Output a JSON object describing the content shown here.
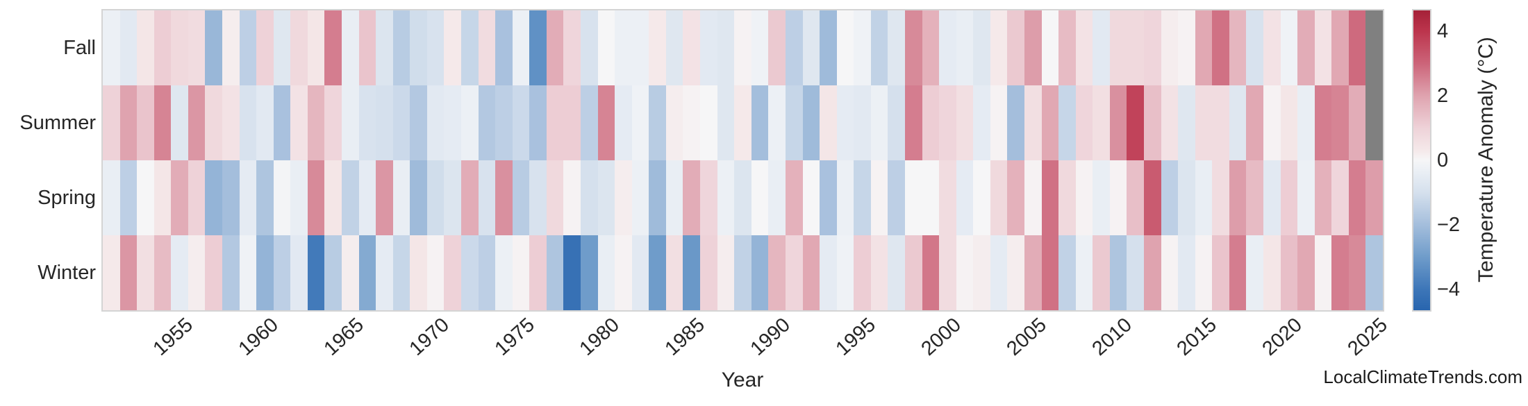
{
  "watermark": "LocalClimateTrends.com",
  "chart_data": {
    "type": "heatmap",
    "xlabel": "Year",
    "x_axis": {
      "year_start": 1951,
      "year_end": 2025,
      "ticks": [
        1955,
        1960,
        1965,
        1970,
        1975,
        1980,
        1985,
        1990,
        1995,
        2000,
        2005,
        2010,
        2015,
        2020,
        2025
      ]
    },
    "colorbar": {
      "label": "Temperature Anomaly (°C)",
      "ticks": [
        4,
        2,
        0,
        -2,
        -4
      ],
      "vmin": -4.65,
      "vmax": 4.65
    },
    "missing_color": "#808080",
    "accent_negative": "#2865ae",
    "accent_positive": "#a52138",
    "colormap_anchors": [
      [
        -4.65,
        "#2865ae"
      ],
      [
        -4.0,
        "#3d76b8"
      ],
      [
        -3.0,
        "#6f9cca"
      ],
      [
        -2.0,
        "#a4bedc"
      ],
      [
        -1.0,
        "#d5e0ed"
      ],
      [
        -0.3,
        "#ecf0f5"
      ],
      [
        0.0,
        "#f6f6f7"
      ],
      [
        0.3,
        "#f5e9ea"
      ],
      [
        1.0,
        "#eed2d8"
      ],
      [
        2.0,
        "#dfa3af"
      ],
      [
        3.0,
        "#cc6479"
      ],
      [
        4.0,
        "#bc354d"
      ],
      [
        4.65,
        "#a52138"
      ]
    ],
    "rows": [
      {
        "name": "Fall",
        "values": [
          -0.3,
          -0.6,
          0.4,
          1.1,
          0.8,
          0.7,
          -2.2,
          0.2,
          -1.5,
          1.0,
          -0.7,
          0.8,
          0.4,
          2.6,
          -0.4,
          1.3,
          -0.8,
          -1.6,
          -1.1,
          -0.9,
          0.3,
          -1.3,
          0.7,
          -1.9,
          -0.3,
          -3.3,
          1.8,
          0.9,
          -0.9,
          0.0,
          -0.3,
          -0.3,
          0.3,
          -0.7,
          0.5,
          -0.6,
          -0.7,
          0.1,
          -0.2,
          1.2,
          -1.5,
          -0.7,
          -2.1,
          0.0,
          -0.2,
          -1.4,
          -0.7,
          2.4,
          1.7,
          -0.5,
          -0.4,
          -0.7,
          0.3,
          1.2,
          2.1,
          0.0,
          1.5,
          0.5,
          -0.6,
          0.8,
          0.8,
          0.9,
          0.2,
          0.1,
          1.9,
          2.8,
          1.6,
          -0.9,
          0.5,
          -0.2,
          1.8,
          0.5,
          1.9,
          2.9,
          null
        ]
      },
      {
        "name": "Summer",
        "values": [
          1.0,
          2.0,
          1.3,
          2.5,
          -0.7,
          2.2,
          0.8,
          0.5,
          -0.9,
          -0.6,
          -1.9,
          0.5,
          1.6,
          0.9,
          -0.4,
          -0.9,
          -1.0,
          -1.2,
          -1.7,
          -0.6,
          -0.5,
          -0.3,
          -1.7,
          -1.5,
          -1.2,
          -1.9,
          1.1,
          1.1,
          -1.5,
          2.5,
          -0.5,
          -0.2,
          -1.6,
          0.2,
          0.1,
          0.0,
          -0.7,
          0.3,
          -2.0,
          -0.3,
          -1.3,
          -2.1,
          0.4,
          -0.5,
          -0.6,
          -0.3,
          -1.0,
          2.6,
          1.1,
          0.9,
          0.6,
          -0.5,
          0.1,
          -2.0,
          0.6,
          1.9,
          -1.3,
          0.9,
          0.6,
          2.3,
          3.7,
          1.4,
          0.5,
          -0.7,
          0.7,
          0.7,
          -0.7,
          1.9,
          0.1,
          0.4,
          -0.4,
          2.6,
          2.5,
          1.8,
          null
        ]
      },
      {
        "name": "Spring",
        "values": [
          -0.4,
          -1.5,
          0.0,
          0.4,
          1.8,
          1.0,
          -2.3,
          -2.0,
          -0.5,
          -1.8,
          -0.1,
          -0.4,
          2.4,
          0.4,
          -1.4,
          -0.5,
          2.2,
          -0.4,
          -2.1,
          -1.1,
          -0.8,
          1.8,
          -0.9,
          2.3,
          -1.6,
          -0.9,
          0.8,
          0.1,
          -1.0,
          -0.8,
          0.2,
          -0.3,
          -2.1,
          -0.4,
          1.8,
          0.9,
          -0.3,
          -0.8,
          0.0,
          -0.4,
          1.7,
          0.0,
          -1.9,
          -0.3,
          -1.3,
          0.1,
          -1.5,
          0.0,
          0.0,
          0.7,
          -0.5,
          0.0,
          0.8,
          1.7,
          0.1,
          2.8,
          0.8,
          0.1,
          -0.4,
          0.1,
          1.4,
          3.2,
          -1.5,
          -0.8,
          -0.4,
          0.7,
          2.1,
          1.5,
          -0.6,
          1.1,
          -0.3,
          1.7,
          0.9,
          2.6,
          2.1
        ]
      },
      {
        "name": "Winter",
        "values": [
          0.3,
          2.2,
          0.6,
          1.5,
          -0.5,
          0.2,
          1.1,
          -1.7,
          -0.2,
          -2.3,
          -1.5,
          -0.6,
          -3.9,
          -1.6,
          0.2,
          -2.6,
          -0.5,
          -1.3,
          0.4,
          0.1,
          1.0,
          -1.2,
          -1.5,
          -0.3,
          0.1,
          1.1,
          -1.8,
          -4.2,
          -3.0,
          -0.4,
          0.1,
          -0.6,
          -3.0,
          0.6,
          -3.1,
          1.0,
          0.2,
          -1.4,
          -2.3,
          1.6,
          0.9,
          1.9,
          -0.5,
          -0.2,
          1.1,
          0.5,
          -0.7,
          1.2,
          2.7,
          0.7,
          0.1,
          0.2,
          -0.5,
          0.2,
          1.8,
          2.8,
          -1.4,
          -0.3,
          1.2,
          -1.8,
          -1.0,
          2.0,
          0.1,
          -0.6,
          0.1,
          1.3,
          2.6,
          -0.4,
          0.4,
          1.4,
          1.9,
          0.1,
          2.6,
          2.4,
          -1.8
        ]
      }
    ]
  }
}
